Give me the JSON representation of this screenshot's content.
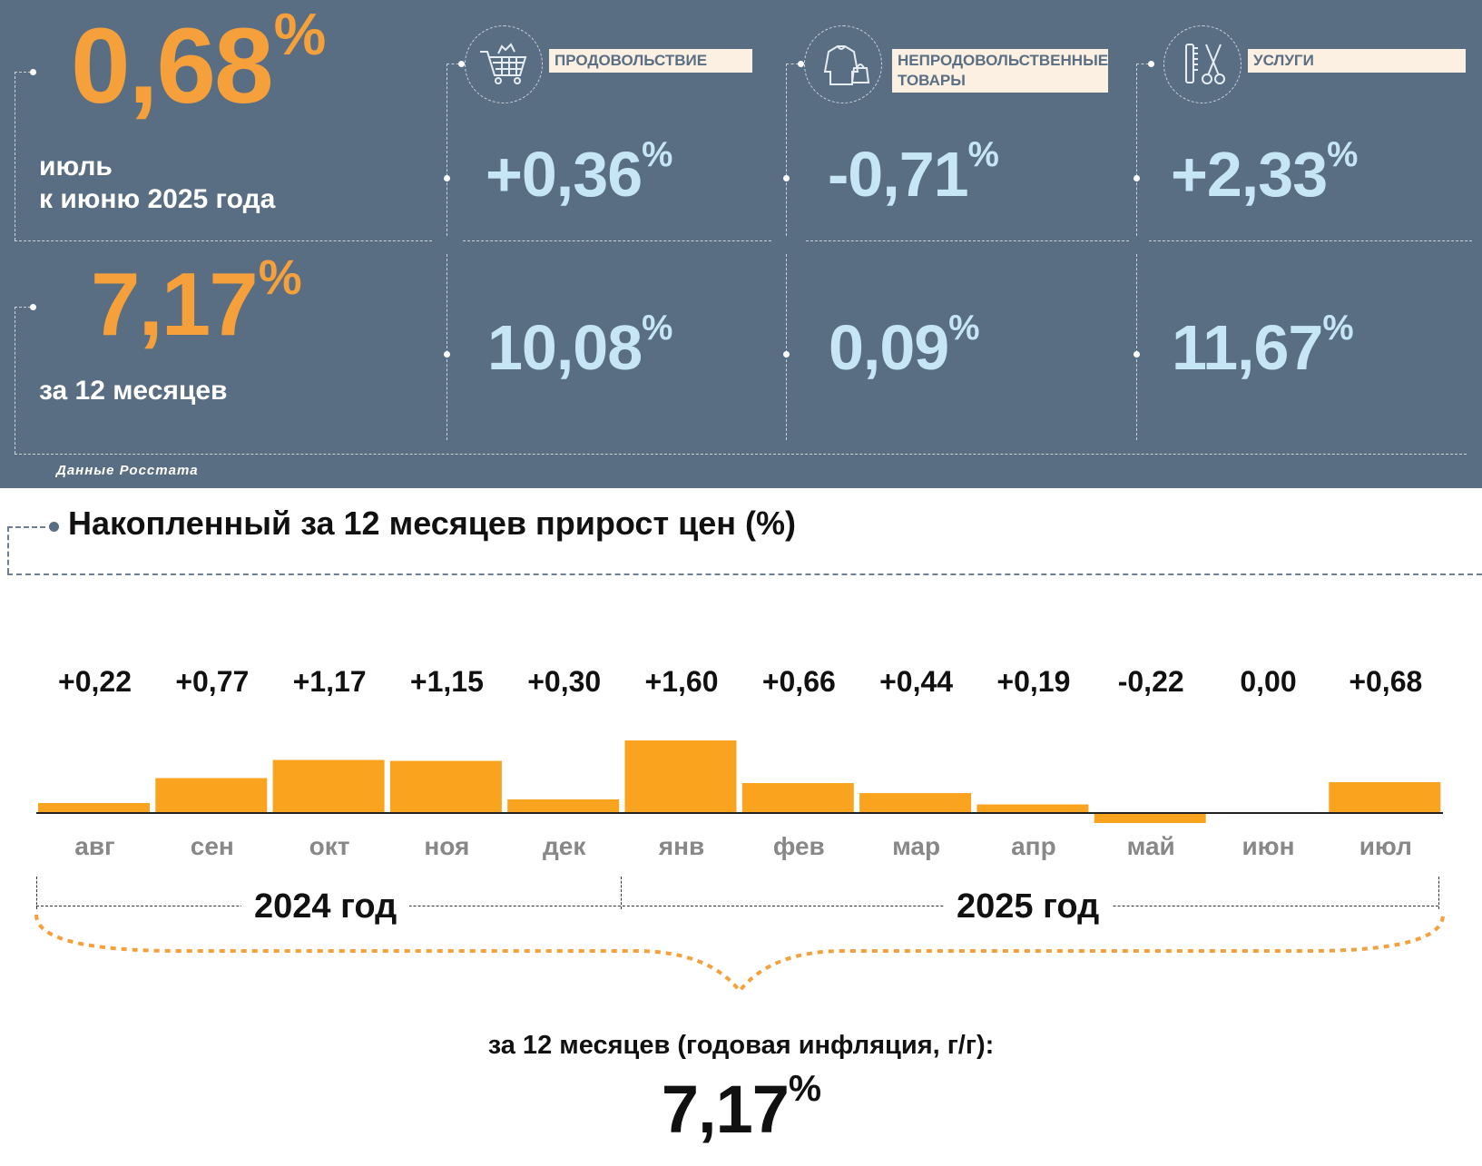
{
  "header": {
    "monthly": {
      "value": "0,68",
      "pct": "%",
      "label_line1": "июль",
      "label_line2": "к июню 2025 года"
    },
    "annual": {
      "value": "7,17",
      "pct": "%",
      "label": "за 12 месяцев"
    },
    "source": "Данные Росстата"
  },
  "categories": [
    {
      "name": "ПРОДОВОЛЬСТВИЕ",
      "icon": "shopping-cart-icon",
      "monthly": "+0,36",
      "annual": "10,08",
      "pct": "%"
    },
    {
      "name_line1": "НЕПРОДОВОЛЬСТВЕННЫЕ",
      "name_line2": "ТОВАРЫ",
      "icon": "clothes-bag-icon",
      "monthly": "-0,71",
      "annual": "0,09",
      "pct": "%"
    },
    {
      "name": "УСЛУГИ",
      "icon": "scissors-comb-icon",
      "monthly": "+2,33",
      "annual": "11,67",
      "pct": "%"
    }
  ],
  "section_title": "Накопленный за 12 месяцев прирост цен (%)",
  "chart_data": {
    "type": "bar",
    "categories": [
      "авг",
      "сен",
      "окт",
      "ноя",
      "дек",
      "янв",
      "фев",
      "мар",
      "апр",
      "май",
      "июн",
      "июл"
    ],
    "values": [
      0.22,
      0.77,
      1.17,
      1.15,
      0.3,
      1.6,
      0.66,
      0.44,
      0.19,
      -0.22,
      0.0,
      0.68
    ],
    "value_labels": [
      "+0,22",
      "+0,77",
      "+1,17",
      "+1,15",
      "+0,30",
      "+1,60",
      "+0,66",
      "+0,44",
      "+0,19",
      "-0,22",
      "0,00",
      "+0,68"
    ],
    "groups": [
      "2024 год",
      "2025 год"
    ],
    "bar_color": "#f9a31f"
  },
  "summary": {
    "label": "за 12 месяцев (годовая инфляция, г/г):",
    "value": "7,17",
    "pct": "%"
  },
  "colors": {
    "panel": "#596e83",
    "orange": "#f5a03a",
    "light_blue": "#c7e6f5",
    "label_bg": "#fbf0e2"
  }
}
